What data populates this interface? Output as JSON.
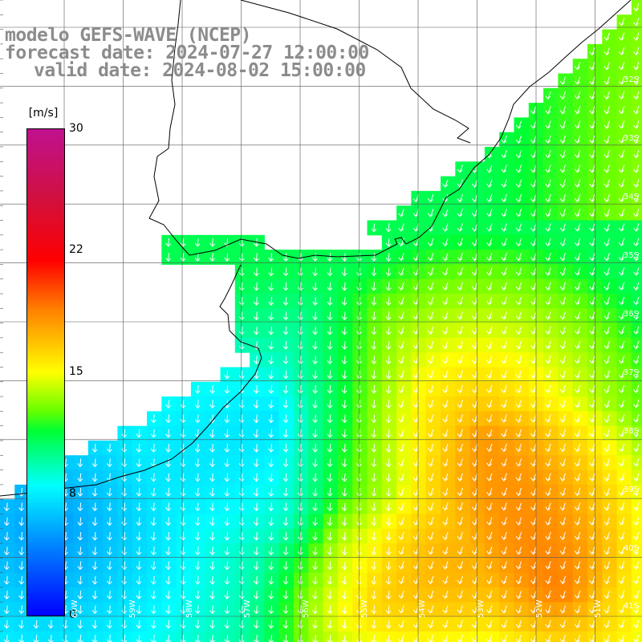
{
  "title": {
    "line1": "modelo GEFS-WAVE (NCEP)",
    "line2": "forecast date: 2024-07-27 12:00:00",
    "line3": "valid date: 2024-08-02 15:00:00"
  },
  "colorbar": {
    "unit": "[m/s]",
    "ticks": [
      "30",
      "22",
      "15",
      "8",
      "0"
    ],
    "colors": [
      "#0000ff",
      "#0077ff",
      "#00ffff",
      "#00ff33",
      "#66ff00",
      "#ffff00",
      "#ff7f00",
      "#ff0000",
      "#c01090"
    ]
  },
  "lat_labels": [
    "32S",
    "33S",
    "34S",
    "35S",
    "36S",
    "37S",
    "38S",
    "39S",
    "40S",
    "41S"
  ],
  "lon_labels": [
    "60W",
    "59W",
    "58W",
    "57W",
    "56W",
    "55W",
    "54W",
    "53W",
    "52W",
    "51W"
  ],
  "colors": {
    "land": "#ffffff",
    "coast": "#000000",
    "grid": "#555555",
    "arrows": "#ffffff"
  }
}
